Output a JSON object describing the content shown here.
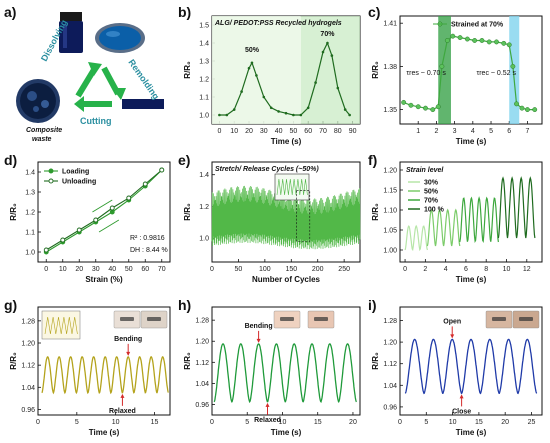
{
  "panel_labels": [
    "a)",
    "b)",
    "c)",
    "d)",
    "e)",
    "f)",
    "g)",
    "h)",
    "i)"
  ],
  "panel_a": {
    "dissolving": "Dissolving",
    "remolding": "Remolding",
    "cutting": "Cutting",
    "waste_line1": "Composite",
    "waste_line2": "waste"
  },
  "colors": {
    "green_dark": "#1f6b1f",
    "green_mid": "#2e9a2e",
    "green_light": "#8fd68f",
    "olive": "#b4a31c",
    "blue": "#1f3aa8",
    "band_green": "#3aa24a",
    "band_blue": "#7fd3ee"
  },
  "chart_data": [
    {
      "panel": "b",
      "type": "line",
      "title": "ALG/ PEDOT:PSS Recycled hydrogels",
      "xlabel": "Time (s)",
      "ylabel": "R/R₀",
      "xlim": [
        -5,
        95
      ],
      "ylim": [
        0.95,
        1.55
      ],
      "xticks": [
        "0",
        "10",
        "20",
        "30",
        "40",
        "50",
        "60",
        "70",
        "80",
        "90"
      ],
      "yticks": [
        "1.0",
        "1.1",
        "1.2",
        "1.3",
        "1.4",
        "1.5"
      ],
      "annotations": [
        "50%",
        "70%"
      ],
      "x": [
        0,
        5,
        10,
        15,
        20,
        22,
        25,
        30,
        35,
        40,
        45,
        50,
        55,
        60,
        65,
        70,
        73,
        76,
        80,
        85,
        88
      ],
      "values": [
        1.0,
        1.0,
        1.03,
        1.13,
        1.26,
        1.29,
        1.22,
        1.1,
        1.04,
        1.02,
        1.01,
        1.0,
        1.0,
        1.04,
        1.18,
        1.35,
        1.4,
        1.33,
        1.15,
        1.03,
        1.0
      ]
    },
    {
      "panel": "c",
      "type": "line",
      "xlabel": "Time (s)",
      "ylabel": "R/R₀",
      "legend": "Strained at 70%",
      "xlim": [
        0,
        7.8
      ],
      "ylim": [
        1.34,
        1.415
      ],
      "xticks": [
        "1",
        "2",
        "3",
        "4",
        "5",
        "6",
        "7"
      ],
      "yticks": [
        "1.35",
        "1.38",
        "1.41"
      ],
      "annotations": [
        "τres ~ 0.70 s",
        "τrec ~ 0.52 s"
      ],
      "x": [
        0.2,
        0.6,
        1.0,
        1.4,
        1.8,
        2.1,
        2.3,
        2.6,
        2.9,
        3.3,
        3.7,
        4.1,
        4.5,
        4.9,
        5.3,
        5.7,
        6.0,
        6.2,
        6.4,
        6.7,
        7.0,
        7.4
      ],
      "values": [
        1.355,
        1.353,
        1.352,
        1.351,
        1.35,
        1.352,
        1.38,
        1.398,
        1.401,
        1.4,
        1.399,
        1.398,
        1.398,
        1.397,
        1.397,
        1.396,
        1.395,
        1.38,
        1.354,
        1.351,
        1.35,
        1.35
      ]
    },
    {
      "panel": "d",
      "type": "line",
      "xlabel": "Strain (%)",
      "ylabel": "R/R₀",
      "xlim": [
        -5,
        75
      ],
      "ylim": [
        0.95,
        1.45
      ],
      "xticks": [
        "0",
        "10",
        "20",
        "30",
        "40",
        "50",
        "60",
        "70"
      ],
      "yticks": [
        "1.0",
        "1.1",
        "1.2",
        "1.3",
        "1.4"
      ],
      "annotations": [
        "R² : 0.9816",
        "DH : 8.44 %"
      ],
      "x": [
        0,
        10,
        20,
        30,
        40,
        50,
        60,
        70
      ],
      "series": [
        {
          "name": "Loading",
          "values": [
            1.0,
            1.05,
            1.1,
            1.15,
            1.2,
            1.26,
            1.33,
            1.41
          ]
        },
        {
          "name": "Unloading",
          "values": [
            1.01,
            1.06,
            1.11,
            1.16,
            1.22,
            1.27,
            1.34,
            1.41
          ]
        }
      ]
    },
    {
      "panel": "e",
      "type": "line",
      "title": "Stretch/ Release Cycles (~50%)",
      "xlabel": "Number of Cycles",
      "ylabel": "R/R₀",
      "xlim": [
        0,
        280
      ],
      "ylim": [
        0.85,
        1.48
      ],
      "xticks": [
        "0",
        "50",
        "100",
        "150",
        "200",
        "250"
      ],
      "yticks": [
        "1.0",
        "1.2",
        "1.4"
      ],
      "cycles": 280,
      "min_value": 0.98,
      "max_value": 1.3
    },
    {
      "panel": "f",
      "type": "line",
      "title": "Strain level",
      "xlabel": "Time (s)",
      "ylabel": "R/R₀",
      "xlim": [
        -0.5,
        13.5
      ],
      "ylim": [
        0.97,
        1.22
      ],
      "xticks": [
        "0",
        "2",
        "4",
        "6",
        "8",
        "10",
        "12"
      ],
      "yticks": [
        "1.00",
        "1.05",
        "1.10",
        "1.15",
        "1.20"
      ],
      "series": [
        {
          "name": "30%",
          "x_start": 0.0,
          "x_end": 2.2,
          "peaks": 3,
          "peak_value": 1.06,
          "base_value": 1.0
        },
        {
          "name": "50%",
          "x_start": 2.2,
          "x_end": 5.4,
          "peaks": 4,
          "peak_value": 1.1,
          "base_value": 1.01
        },
        {
          "name": "70%",
          "x_start": 5.4,
          "x_end": 9.2,
          "peaks": 5,
          "peak_value": 1.13,
          "base_value": 1.02
        },
        {
          "name": "100 %",
          "x_start": 9.2,
          "x_end": 12.8,
          "peaks": 4,
          "peak_value": 1.18,
          "base_value": 1.03
        }
      ]
    },
    {
      "panel": "g",
      "type": "line",
      "xlabel": "Time (s)",
      "ylabel": "R/R₀",
      "xlim": [
        0,
        17
      ],
      "ylim": [
        0.94,
        1.33
      ],
      "xticks": [
        "0",
        "5",
        "10",
        "15"
      ],
      "yticks": [
        "0.96",
        "1.04",
        "1.12",
        "1.20",
        "1.28"
      ],
      "annotations": [
        "Bending",
        "Relaxed"
      ],
      "cycles": 11,
      "x_start": 0.5,
      "x_end": 16.8,
      "peak_value": 1.15,
      "base_value": 1.02
    },
    {
      "panel": "h",
      "type": "line",
      "xlabel": "Time (s)",
      "ylabel": "R/R₀",
      "xlim": [
        0,
        21
      ],
      "ylim": [
        0.92,
        1.33
      ],
      "xticks": [
        "0",
        "5",
        "10",
        "15",
        "20"
      ],
      "yticks": [
        "0.96",
        "1.04",
        "1.12",
        "1.20",
        "1.28"
      ],
      "annotations": [
        "Bending",
        "Relaxed"
      ],
      "cycles": 8,
      "x_start": 0.3,
      "x_end": 20.5,
      "peak_value": 1.19,
      "base_value": 0.97
    },
    {
      "panel": "i",
      "type": "line",
      "xlabel": "Time (s)",
      "ylabel": "R/R₀",
      "xlim": [
        0,
        27
      ],
      "ylim": [
        0.93,
        1.33
      ],
      "xticks": [
        "0",
        "5",
        "10",
        "15",
        "20",
        "25"
      ],
      "yticks": [
        "0.96",
        "1.04",
        "1.12",
        "1.20",
        "1.28"
      ],
      "annotations": [
        "Open",
        "Close"
      ],
      "cycles": 7,
      "x_start": 1.0,
      "x_end": 26.0,
      "peak_value": 1.21,
      "base_value": 1.01
    }
  ]
}
